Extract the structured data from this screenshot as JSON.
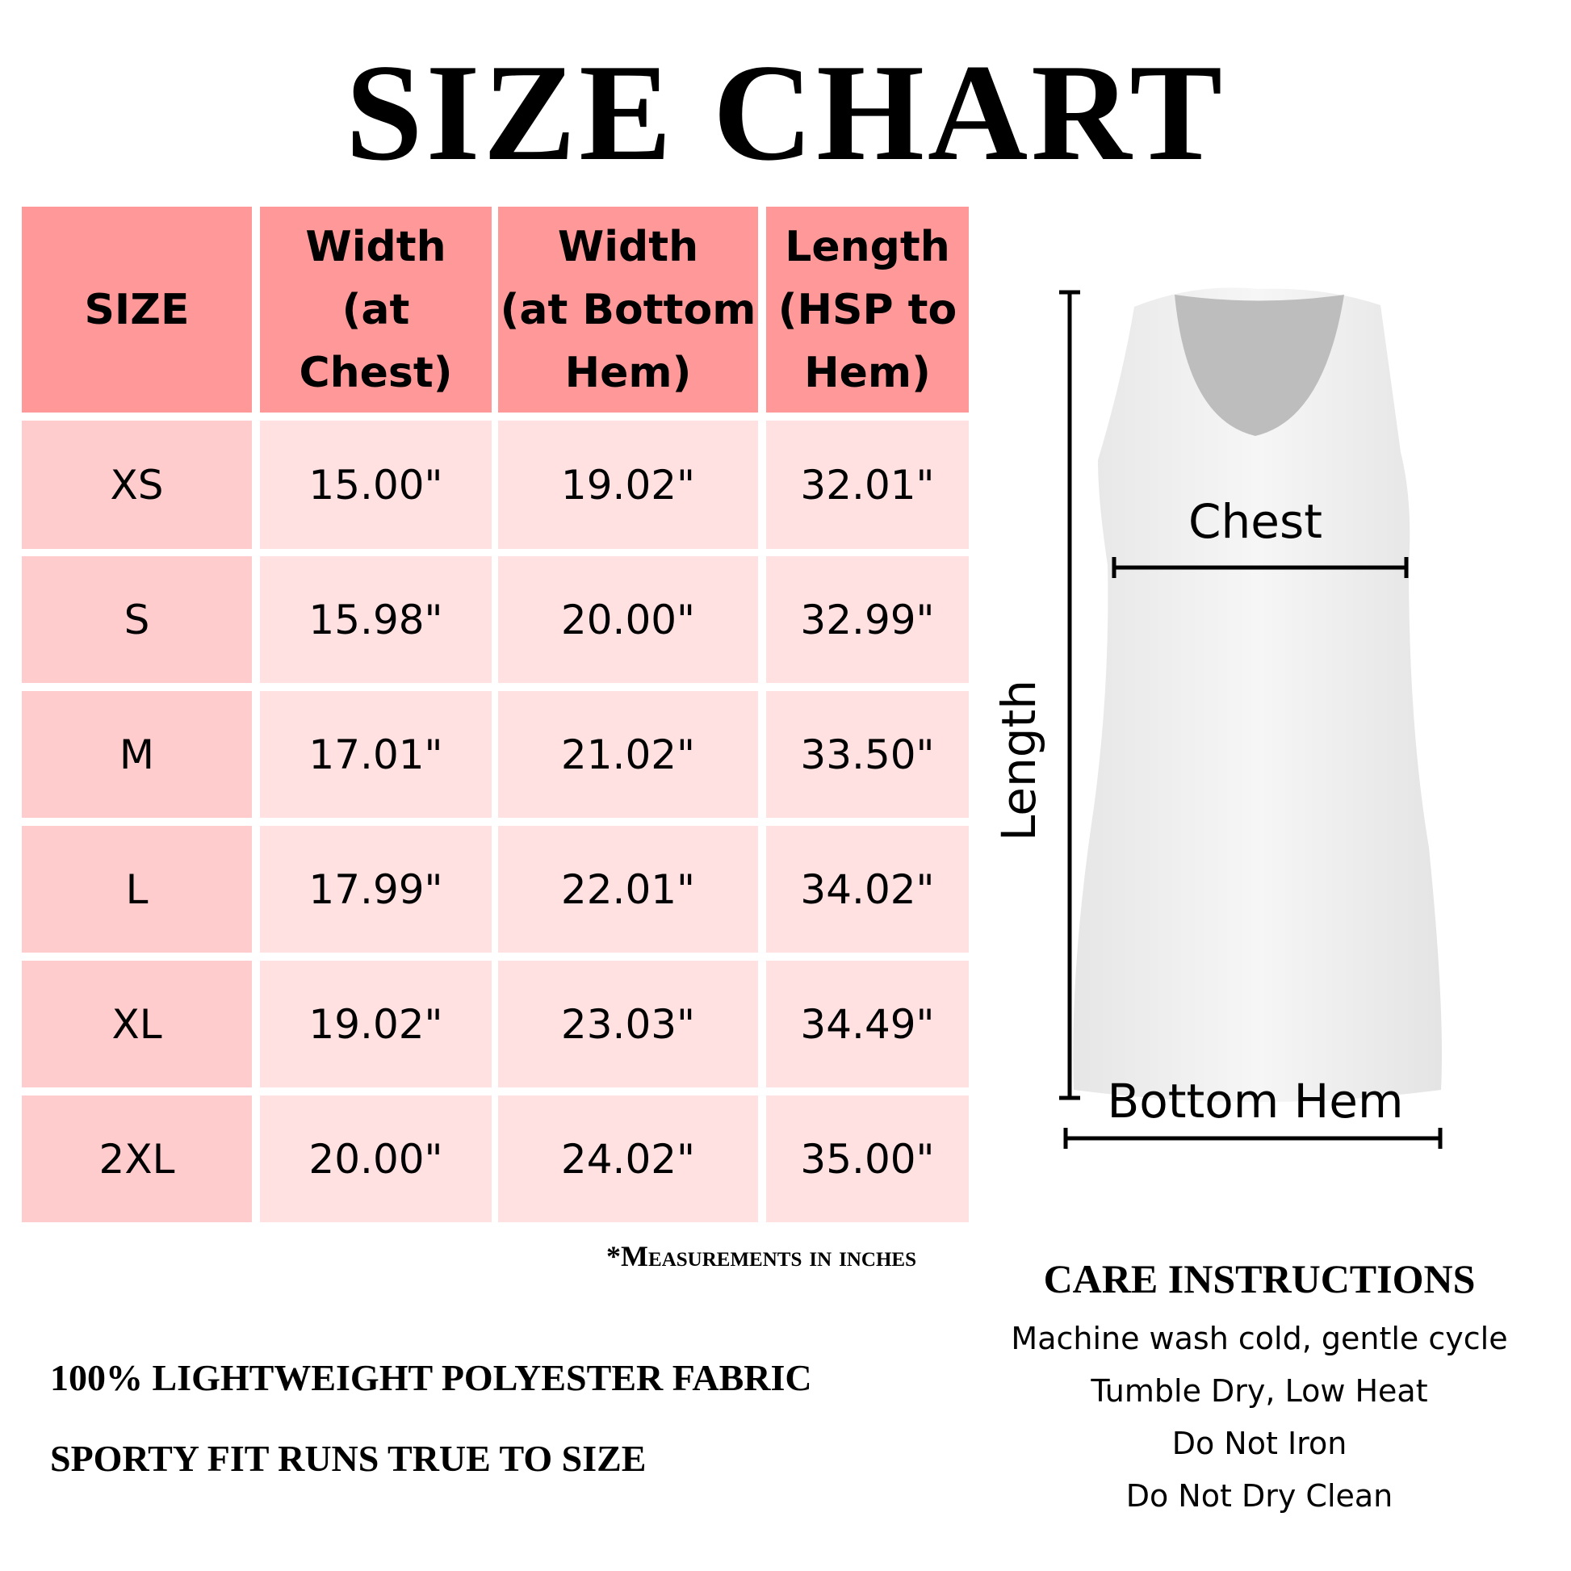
{
  "title": "SIZE CHART",
  "table": {
    "headers": [
      "SIZE",
      "Width\n(at Chest)",
      "Width\n(at Bottom\nHem)",
      "Length\n(HSP to\nHem)"
    ],
    "rows": [
      [
        "XS",
        "15.00\"",
        "19.02\"",
        "32.01\""
      ],
      [
        "S",
        "15.98\"",
        "20.00\"",
        "32.99\""
      ],
      [
        "M",
        "17.01\"",
        "21.02\"",
        "33.50\""
      ],
      [
        "L",
        "17.99\"",
        "22.01\"",
        "34.02\""
      ],
      [
        "XL",
        "19.02\"",
        "23.03\"",
        "34.49\""
      ],
      [
        "2XL",
        "20.00\"",
        "24.02\"",
        "35.00\""
      ]
    ]
  },
  "measurements_note": "*Measurements in inches",
  "features": [
    "100% LIGHTWEIGHT POLYESTER FABRIC",
    "SPORTY FIT RUNS TRUE TO SIZE"
  ],
  "diagram": {
    "chest_label": "Chest",
    "length_label": "Length",
    "hem_label": "Bottom Hem"
  },
  "care": {
    "title": "CARE INSTRUCTIONS",
    "items": [
      "Machine wash cold, gentle cycle",
      "Tumble Dry, Low Heat",
      "Do Not Iron",
      "Do Not Dry Clean"
    ]
  },
  "colors": {
    "header": "#FF9999",
    "size_column": "#FFCCCD",
    "value_cells": "#FFE1E2"
  }
}
